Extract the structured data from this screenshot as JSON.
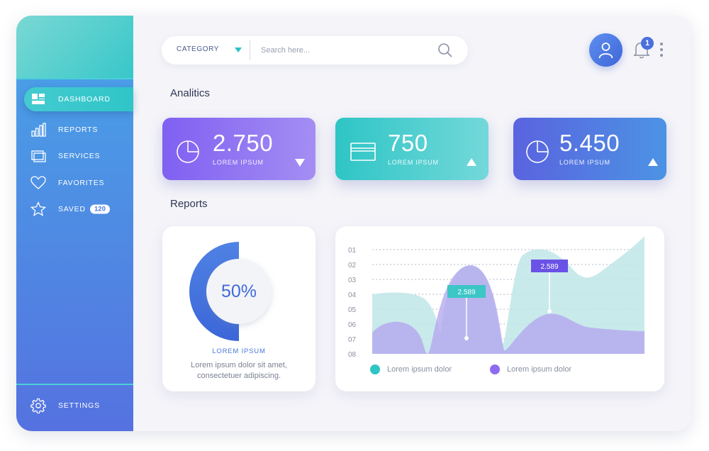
{
  "sidebar": {
    "items": [
      {
        "label": "DASHBOARD",
        "icon": "dashboard-icon",
        "active": true
      },
      {
        "label": "REPORTS",
        "icon": "bar-chart-icon"
      },
      {
        "label": "SERVICES",
        "icon": "stacked-windows-icon"
      },
      {
        "label": "FAVORITES",
        "icon": "heart-icon"
      },
      {
        "label": "SAVED",
        "icon": "star-icon",
        "badge": "120"
      }
    ],
    "settings_label": "SETTINGS"
  },
  "header": {
    "category_label": "CATEGORY",
    "search_placeholder": "Search here...",
    "notification_count": "1"
  },
  "analytics": {
    "title": "Analitics",
    "cards": [
      {
        "value": "2.750",
        "label": "LOREM IPSUM",
        "trend": "down",
        "icon": "pie-chart-icon",
        "gradient": [
          "#8b5cf0",
          "#a98ff2"
        ]
      },
      {
        "value": "750",
        "label": "LOREM IPSUM",
        "trend": "up",
        "icon": "credit-card-icon",
        "gradient": [
          "#2ec5c5",
          "#6fd6d8"
        ]
      },
      {
        "value": "5.450",
        "label": "LOREM IPSUM",
        "trend": "up",
        "icon": "pie-chart-icon",
        "gradient": [
          "#5a63df",
          "#4b8fe3"
        ]
      }
    ]
  },
  "reports": {
    "title": "Reports",
    "donut": {
      "percent_label": "50%",
      "percent": 50,
      "title": "LOREM IPSUM",
      "description": "Lorem ipsum dolor sit amet, consectetuer adipiscing."
    }
  },
  "chart_data": {
    "type": "area",
    "y_tick_labels": [
      "01",
      "02",
      "03",
      "04",
      "05",
      "06",
      "07",
      "08"
    ],
    "grid": "dotted horizontal",
    "series": [
      {
        "name": "Lorem ipsum dolor",
        "color": "#2ec5c5"
      },
      {
        "name": "Lorem ipsum dolor",
        "color": "#8c6cf0"
      }
    ],
    "annotations": [
      {
        "label": "2.589",
        "color": "#3cc6c6"
      },
      {
        "label": "2.589",
        "color": "#6a52e6"
      }
    ]
  },
  "colors": {
    "accent_teal": "#38c7c9",
    "accent_blue": "#4c78e0",
    "accent_purple": "#8b5cf0"
  }
}
